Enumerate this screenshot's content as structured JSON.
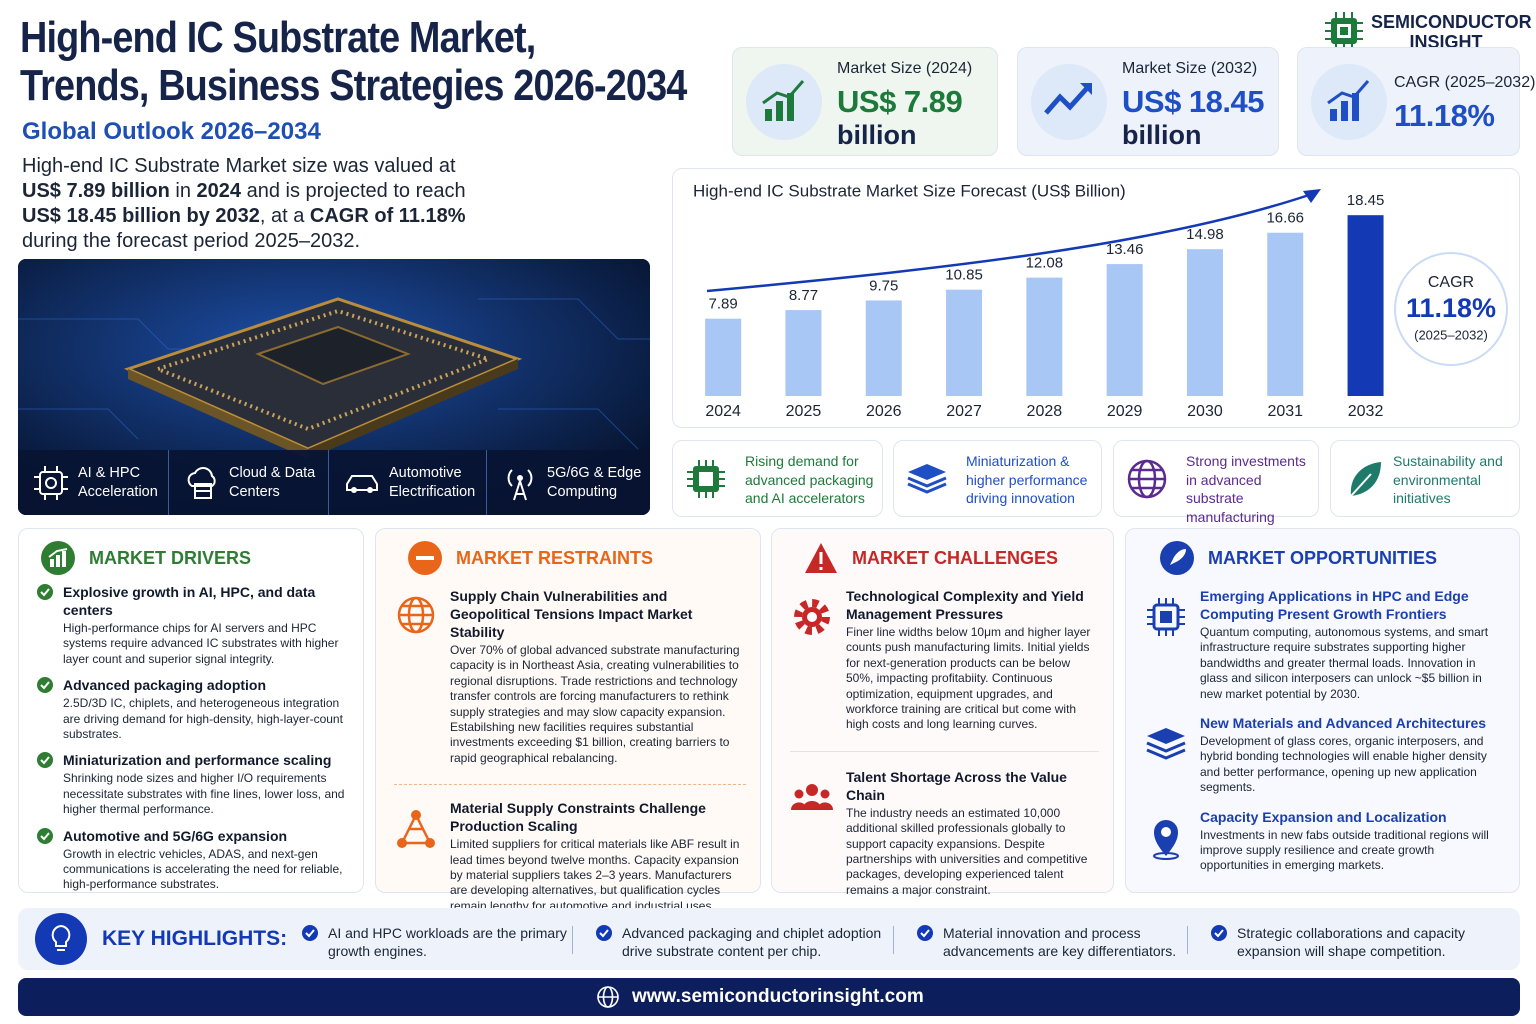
{
  "header": {
    "title_lines": [
      "High-end IC Substrate Market,",
      "Trends, Business Strategies 2026-2034"
    ],
    "subtitle": "Global Outlook 2026–2034",
    "summary": [
      {
        "text": "High-end IC Substrate Market size was valued at ",
        "bold": false
      },
      {
        "text": "US$ 7.89 billion",
        "bold": true
      },
      {
        "text": " in ",
        "bold": false
      },
      {
        "text": "2024",
        "bold": true
      },
      {
        "text": " and is projected to reach ",
        "bold": false
      },
      {
        "text": "US$ 18.45 billion by 2032",
        "bold": true
      },
      {
        "text": ", at a ",
        "bold": false
      },
      {
        "text": "CAGR of 11.18%",
        "bold": true
      },
      {
        "text": " during the forecast period 2025–2032.",
        "bold": false
      }
    ]
  },
  "brand": {
    "name_lines": [
      "SEMICONDUCTOR",
      "INSIGHT"
    ]
  },
  "stats": [
    {
      "label": "Market Size (2024)",
      "value": "US$ 7.89",
      "unit": "billion",
      "color": "#1e7a3a",
      "background": "#eef6ef"
    },
    {
      "label": "Market Size (2032)",
      "value": "US$ 18.45",
      "unit": "billion",
      "color": "#1f4fc4",
      "background": "#eef2fb"
    },
    {
      "label": "CAGR (2025–2032)",
      "value": "11.18%",
      "color": "#1f4fc4",
      "background": "#eef2fb"
    }
  ],
  "chart_data": {
    "type": "bar",
    "title": "High-end IC Substrate Market Size Forecast (US$ Billion)",
    "categories": [
      "2024",
      "2025",
      "2026",
      "2027",
      "2028",
      "2029",
      "2030",
      "2031",
      "2032"
    ],
    "values": [
      7.89,
      8.77,
      9.75,
      10.85,
      12.08,
      13.46,
      14.98,
      16.66,
      18.45
    ],
    "colors": [
      "#a9c7f5",
      "#a9c7f5",
      "#a9c7f5",
      "#a9c7f5",
      "#a9c7f5",
      "#a9c7f5",
      "#a9c7f5",
      "#a9c7f5",
      "#1339b5"
    ],
    "ylim": [
      0,
      20
    ],
    "annotation": {
      "label": "CAGR",
      "value": "11.18%",
      "period": "(2025–2032)"
    }
  },
  "applications": [
    "AI & HPC Acceleration",
    "Cloud & Data Centers",
    "Automotive Electrification",
    "5G/6G & Edge Computing"
  ],
  "trends": [
    {
      "text": "Rising demand for advanced packaging and AI accelerators",
      "color": "#1e7a3a"
    },
    {
      "text": "Miniaturization & higher performance driving innovation",
      "color": "#1f4fc4"
    },
    {
      "text": "Strong investments in advanced substrate manufacturing",
      "color": "#5b2a91"
    },
    {
      "text": "Sustainability and environmental initiatives",
      "color": "#1e7a6a"
    }
  ],
  "sections": [
    {
      "title": "MARKET DRIVERS",
      "color": "#2e7d32",
      "items": [
        {
          "heading": "Explosive growth in AI, HPC, and data centers",
          "text": "High-performance chips for AI servers and HPC systems require advanced IC substrates with higher layer count and superior signal integrity."
        },
        {
          "heading": "Advanced packaging adoption",
          "text": "2.5D/3D IC, chiplets, and heterogeneous integration are driving demand for high-density, high-layer-count substrates."
        },
        {
          "heading": "Miniaturization and performance scaling",
          "text": "Shrinking node sizes and higher I/O requirements necessitate substrates with fine lines, lower loss, and higher thermal performance."
        },
        {
          "heading": "Automotive and 5G/6G expansion",
          "text": "Growth in electric vehicles, ADAS, and next-gen communications is accelerating the need for reliable, high-performance substrates."
        }
      ]
    },
    {
      "title": "MARKET RESTRAINTS",
      "color": "#e8651a",
      "items": [
        {
          "heading": "Supply Chain Vulnerabilities and Geopolitical Tensions Impact Market Stability",
          "text": "Over 70% of global advanced substrate manufacturing capacity is in Northeast Asia, creating vulnerabilities to regional disruptions. Trade restrictions and technology transfer controls are forcing manufacturers to rethink supply strategies and may slow capacity expansion. Estabilshing new facilities requires substantial investments exceeding $1 billion, creating barriers to rapid geographical rebalancing."
        },
        {
          "heading": "Material Supply Constraints Challenge Production Scaling",
          "text": "Limited suppliers for critical materials like ABF result in lead times beyond twelve months. Capacity expansion by material suppliers takes 2–3 years. Manufacturers are developing alternatives, but qualification cycles remain lengthy for automotive and industrial uses."
        }
      ]
    },
    {
      "title": "MARKET CHALLENGES",
      "color": "#c62828",
      "items": [
        {
          "heading": "Technological Complexity and Yield Management Pressures",
          "text": "Finer line widths below 10μm and higher layer counts push manufacturing limits. Initial yields for next-generation products can be below 50%, impacting profitabiity. Continuous optimization, equipment upgrades, and workforce training are critical but come with high costs and long learning curves."
        },
        {
          "heading": "Talent Shortage Across the Value Chain",
          "text": "The industry needs an estimated 10,000 additional skilled professionals globally to support capacity expansions. Despite partnerships with universities and competitive packages, developing experienced talent remains a major constraint."
        }
      ]
    },
    {
      "title": "MARKET OPPORTUNITIES",
      "color": "#1a3fb0",
      "items": [
        {
          "heading": "Emerging Applications in HPC and Edge Computing Present Growth Frontiers",
          "text": "Quantum computing, autonomous systems, and smart infrastructure require substrates supporting higher bandwidths and greater thermal loads. Innovation in glass and silicon interposers can unlock ~$5 billion in new market potential by 2030."
        },
        {
          "heading": "New Materials and Advanced Architectures",
          "text": "Development of glass cores, organic interposers, and hybrid bonding technologies will enable higher density and better performance, opening up new application segments."
        },
        {
          "heading": "Capacity Expansion and Localization",
          "text": "Investments in new fabs outside traditional regions will improve supply resilience and create growth opportunities in emerging markets."
        }
      ]
    }
  ],
  "key_highlights": {
    "title": "KEY HIGHLIGHTS:",
    "items": [
      "AI and HPC workloads are the primary growth engines.",
      "Advanced packaging and chiplet adoption drive substrate content per chip.",
      "Material innovation and process advancements are key differentiators.",
      "Strategic collaborations and capacity expansion will shape competition."
    ]
  },
  "footer": {
    "url": "www.semiconductorinsight.com"
  }
}
